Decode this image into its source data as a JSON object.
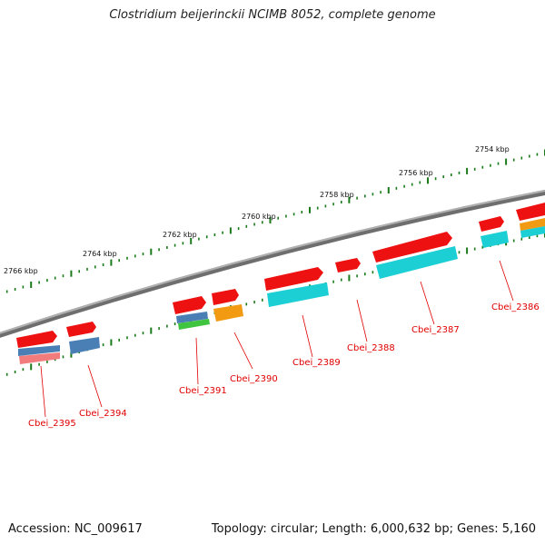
{
  "title": "Clostridium beijerinckii NCIMB 8052, complete genome",
  "footer": {
    "accession": "Accession: NC_009617",
    "topology": "Topology: circular; Length: 6,000,632 bp; Genes: 5,160"
  },
  "colors": {
    "backbone": "#8c8c8c",
    "tick": "#1a7a1a",
    "gene_red": "#ee1111",
    "label": "#e00000",
    "cyan": "#1ccfd4",
    "blue": "#4a7fb6",
    "orange": "#f29a12",
    "pink": "#f27c7c",
    "green": "#3ec43e"
  },
  "scale_labels": [
    "2766 kbp",
    "2764 kbp",
    "2762 kbp",
    "2760 kbp",
    "2758 kbp",
    "2756 kbp",
    "2754 kbp"
  ],
  "gene_labels": [
    "Cbei_2395",
    "Cbei_2394",
    "Cbei_2391",
    "Cbei_2390",
    "Cbei_2389",
    "Cbei_2388",
    "Cbei_2387",
    "Cbei_2386"
  ]
}
